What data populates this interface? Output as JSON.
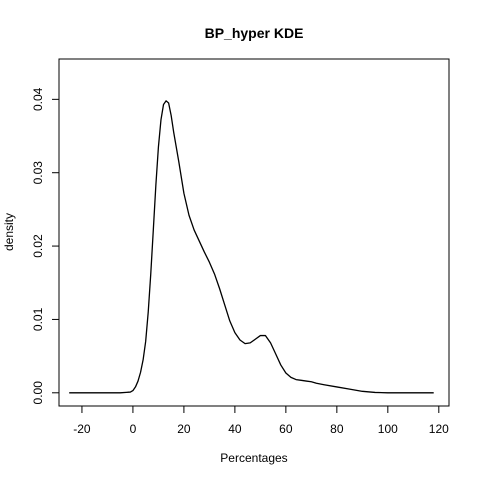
{
  "chart_data": {
    "type": "line",
    "title": "BP_hyper  KDE",
    "xlabel": "Percentages",
    "ylabel": "density",
    "xlim": [
      -29,
      124
    ],
    "ylim": [
      -0.0018,
      0.0455
    ],
    "xticks": [
      -20,
      0,
      20,
      40,
      60,
      80,
      100,
      120
    ],
    "xtick_labels": [
      "-20",
      "0",
      "20",
      "40",
      "60",
      "80",
      "100",
      "120"
    ],
    "yticks": [
      0.0,
      0.01,
      0.02,
      0.03,
      0.04
    ],
    "ytick_labels": [
      "0.00",
      "0.01",
      "0.02",
      "0.03",
      "0.04"
    ],
    "grid": false,
    "legend": "none",
    "series": [
      {
        "color": "#000000",
        "x": [
          -25,
          -15,
          -5,
          -1,
          0,
          1,
          2,
          3,
          4,
          5,
          6,
          7,
          8,
          9,
          10,
          11,
          12,
          13,
          14,
          15,
          16,
          17,
          18,
          20,
          22,
          24,
          26,
          28,
          30,
          32,
          34,
          36,
          38,
          40,
          42,
          44,
          46,
          48,
          50,
          52,
          54,
          56,
          58,
          60,
          62,
          64,
          66,
          68,
          70,
          72,
          75,
          80,
          85,
          90,
          95,
          100,
          110,
          118
        ],
        "y": [
          0.0,
          0.0,
          0.0,
          0.0001,
          0.0003,
          0.0008,
          0.0016,
          0.0028,
          0.0045,
          0.007,
          0.011,
          0.0162,
          0.0222,
          0.0283,
          0.0335,
          0.0372,
          0.0393,
          0.0398,
          0.0395,
          0.0378,
          0.0355,
          0.0335,
          0.0315,
          0.0272,
          0.0242,
          0.0222,
          0.0207,
          0.0192,
          0.0178,
          0.0162,
          0.0142,
          0.012,
          0.0098,
          0.0082,
          0.0072,
          0.0067,
          0.0068,
          0.0073,
          0.0078,
          0.0078,
          0.0068,
          0.0053,
          0.0038,
          0.0027,
          0.0021,
          0.0018,
          0.0017,
          0.0016,
          0.0015,
          0.0013,
          0.0011,
          0.0008,
          0.0005,
          0.0002,
          5e-05,
          0.0,
          0.0,
          0.0
        ]
      }
    ]
  }
}
